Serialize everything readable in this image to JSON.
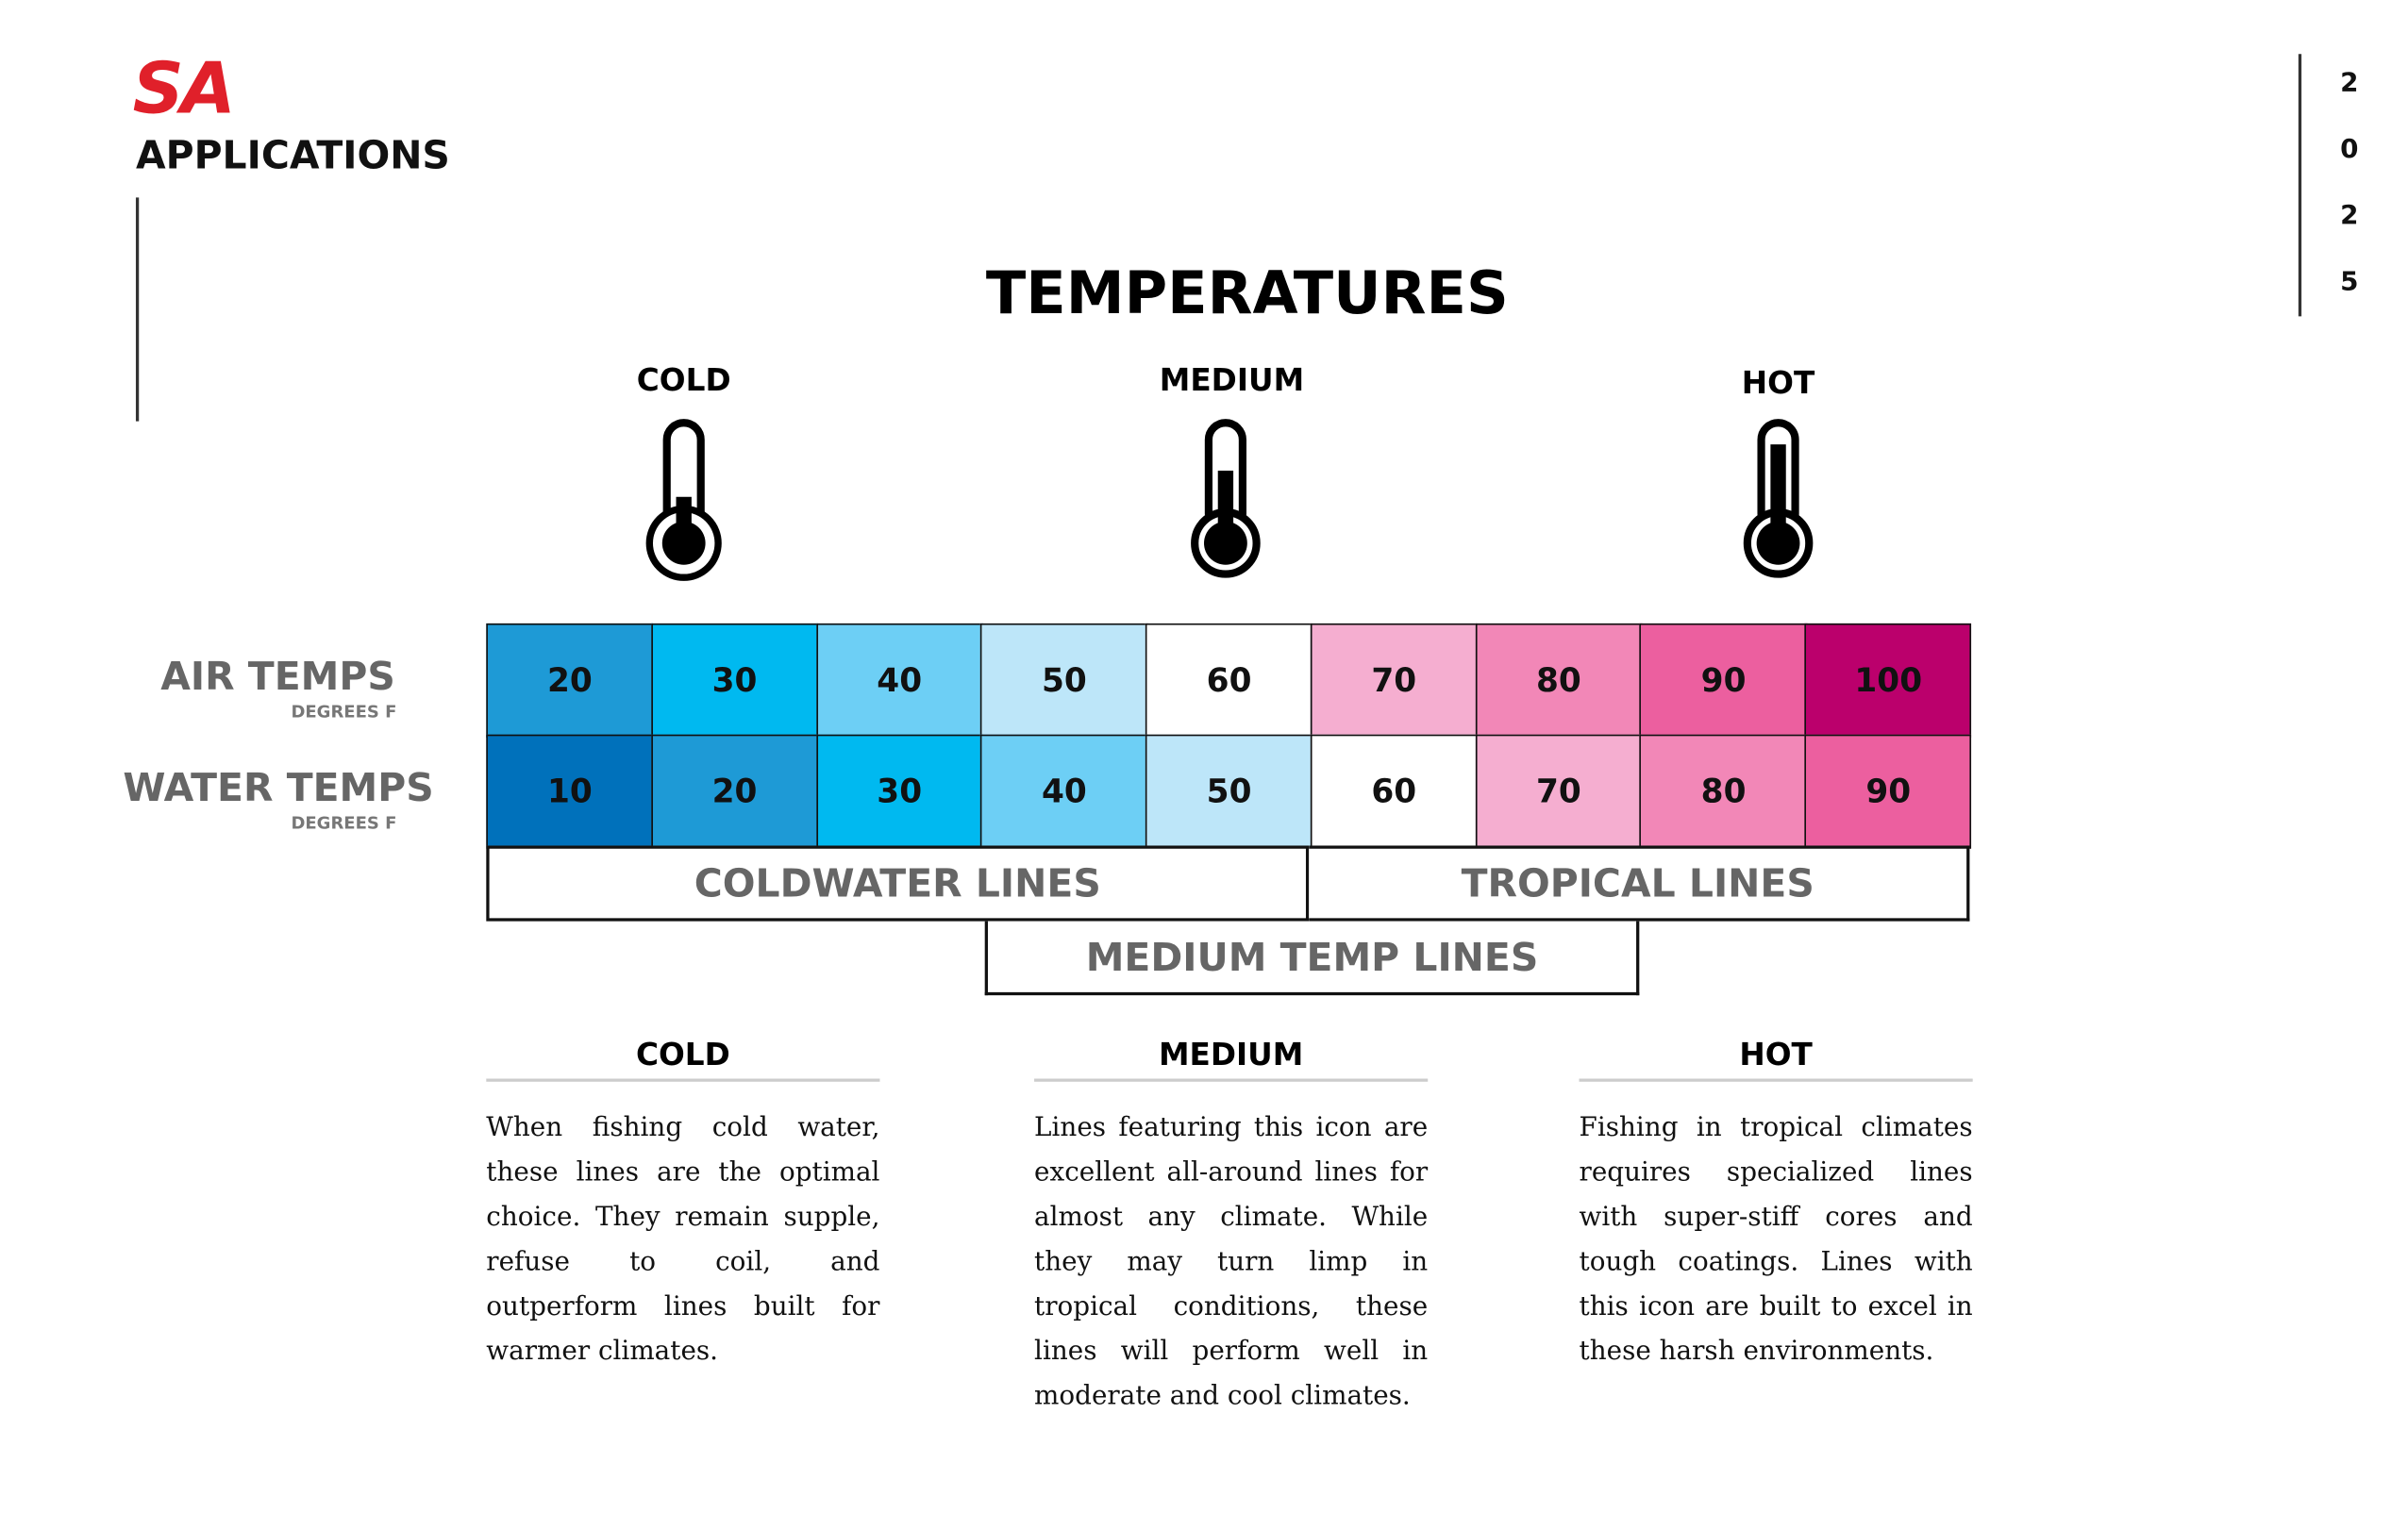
{
  "header": {
    "logo": "SA",
    "title": "APPLICATIONS",
    "year_digits": [
      "2",
      "0",
      "2",
      "5"
    ]
  },
  "title": "TEMPERATURES",
  "levels": [
    "COLD",
    "MEDIUM",
    "HOT"
  ],
  "table": {
    "rows": [
      {
        "label": "AIR TEMPS",
        "unit": "DEGREES F",
        "values": [
          20,
          30,
          40,
          50,
          60,
          70,
          80,
          90,
          100
        ],
        "colors": [
          "#1e9ad6",
          "#00b9f0",
          "#6dcff5",
          "#bde6f9",
          "#ffffff",
          "#f5aed0",
          "#f287b7",
          "#ec5f9f",
          "#bb006c"
        ]
      },
      {
        "label": "WATER TEMPS",
        "unit": "DEGREES F",
        "values": [
          10,
          20,
          30,
          40,
          50,
          60,
          70,
          80,
          90
        ],
        "colors": [
          "#0071bb",
          "#1e9ad6",
          "#00b9f0",
          "#6dcff5",
          "#bde6f9",
          "#ffffff",
          "#f5aed0",
          "#f287b7",
          "#ec5f9f"
        ]
      }
    ],
    "bands": [
      "COLDWATER LINES",
      "TROPICAL LINES",
      "MEDIUM TEMP LINES"
    ]
  },
  "descriptions": [
    {
      "heading": "COLD",
      "text": "When fishing cold water, these lines are the optimal choice. They remain supple, refuse to coil, and outperform lines built for warmer climates."
    },
    {
      "heading": "MEDIUM",
      "text": "Lines featuring this icon are excellent all-around lines for almost any climate. While they may turn limp in tropical conditions, these lines will perform well in moderate and cool climates."
    },
    {
      "heading": "HOT",
      "text": "Fishing in tropical climates requires specialized lines with super-stiff cores and tough coatings. Lines with this icon are built to excel in these harsh environments."
    }
  ]
}
